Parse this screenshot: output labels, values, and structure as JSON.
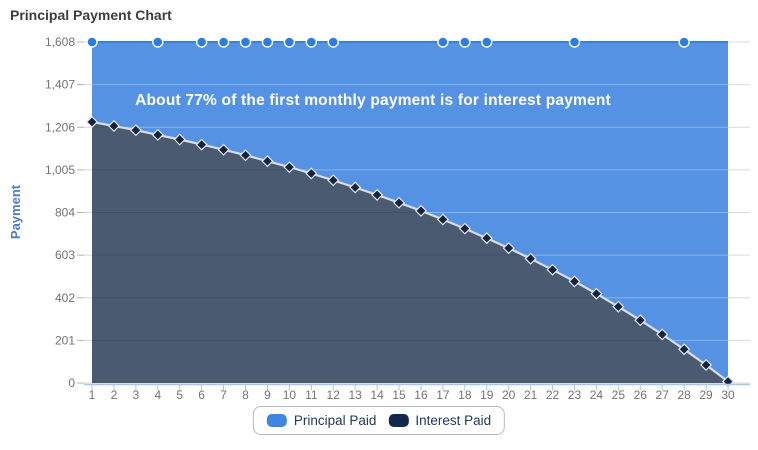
{
  "title": "Principal Payment Chart",
  "legend": {
    "items": [
      {
        "label": "Principal Paid",
        "color": "#3d87e2"
      },
      {
        "label": "Interest Paid",
        "color": "#12284a"
      }
    ]
  },
  "chart_data": {
    "type": "area",
    "stacked": true,
    "title": "Principal Payment Chart",
    "annotation": "About 77% of the first monthly payment is for interest payment",
    "xlabel": "",
    "ylabel": "Payment",
    "ylim": [
      0,
      1608
    ],
    "total_per_x": 1608,
    "grid": true,
    "legend_position": "bottom",
    "x": [
      1,
      2,
      3,
      4,
      5,
      6,
      7,
      8,
      9,
      10,
      11,
      12,
      13,
      14,
      15,
      16,
      17,
      18,
      19,
      20,
      21,
      22,
      23,
      24,
      25,
      26,
      27,
      28,
      29,
      30
    ],
    "y_ticks": [
      0,
      201,
      402,
      603,
      804,
      1005,
      1206,
      1407,
      1608
    ],
    "y_tick_labels": [
      "0",
      "201",
      "402",
      "603",
      "804",
      "1,005",
      "1,206",
      "1,407",
      "1,608"
    ],
    "series": [
      {
        "name": "Principal Paid",
        "values": [
          377,
          396,
          416,
          438,
          460,
          484,
          508,
          534,
          562,
          590,
          620,
          652,
          686,
          721,
          758,
          796,
          837,
          880,
          925,
          972,
          1022,
          1074,
          1129,
          1187,
          1248,
          1312,
          1379,
          1449,
          1523,
          1601
        ],
        "markers_at_x": [
          1,
          4,
          6,
          7,
          8,
          9,
          10,
          11,
          12,
          17,
          18,
          19,
          23,
          28
        ]
      },
      {
        "name": "Interest Paid",
        "values": [
          1231,
          1212,
          1192,
          1170,
          1148,
          1124,
          1100,
          1074,
          1046,
          1018,
          988,
          956,
          922,
          887,
          850,
          812,
          771,
          728,
          683,
          636,
          586,
          534,
          479,
          421,
          360,
          296,
          229,
          159,
          85,
          7
        ]
      }
    ],
    "colors": {
      "principal_area": "#5592e3",
      "principal_top_line": "#3b80dc",
      "principal_marker": "#2d7ce0",
      "interest_area": "#4a5a70",
      "interest_marker": "#152540",
      "boundary_line": "#d9dce1",
      "gridline": "#d9d9d9",
      "x_axis_line": "#a6c6ee",
      "tick_text": "#737373",
      "y_axis_title": "#4a7cc2",
      "chart_title": "#3d3d3d",
      "annotation_text": "#ffffff",
      "legend_border": "#b9b9b9",
      "legend_text": "#24385c"
    }
  }
}
